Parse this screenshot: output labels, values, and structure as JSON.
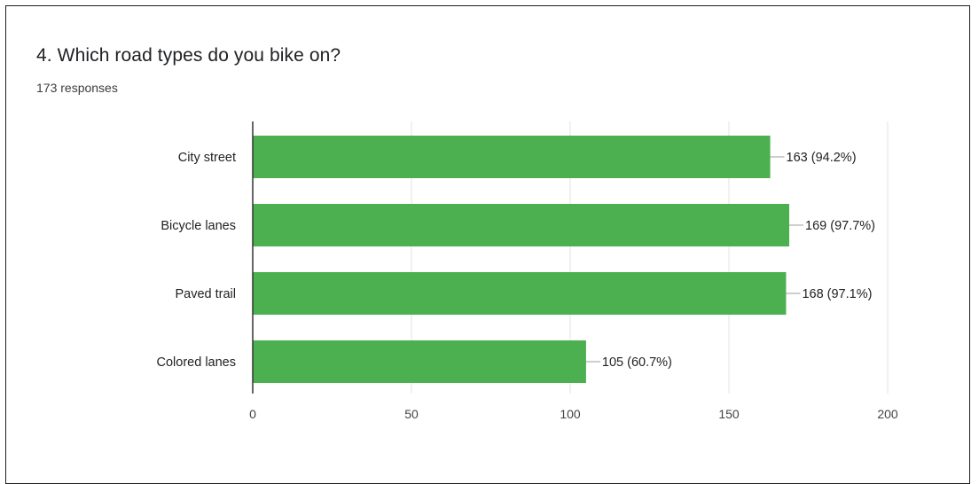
{
  "question": {
    "title": "4. Which road types do you bike on?",
    "responses": "173 responses"
  },
  "chart_data": {
    "type": "bar",
    "orientation": "horizontal",
    "categories": [
      "City street",
      "Bicycle lanes",
      "Paved trail",
      "Colored lanes"
    ],
    "values": [
      163,
      169,
      168,
      105
    ],
    "data_labels": [
      "163 (94.2%)",
      "169 (97.7%)",
      "168 (97.1%)",
      "105 (60.7%)"
    ],
    "xlim": [
      0,
      200
    ],
    "xticks": [
      0,
      50,
      100,
      150,
      200
    ],
    "grid": true,
    "bar_color": "#4caf50"
  }
}
